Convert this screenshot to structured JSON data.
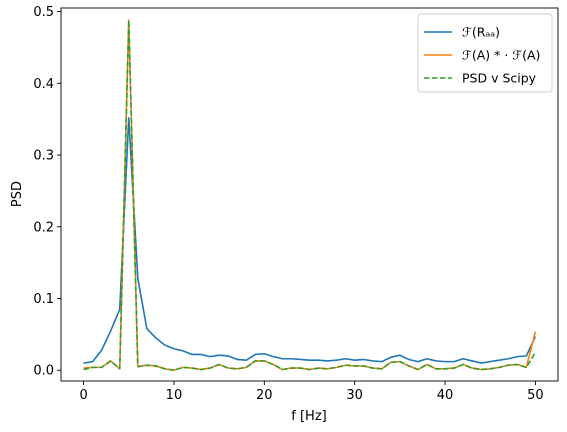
{
  "chart_data": {
    "type": "line",
    "title": "",
    "xlabel": "f [Hz]",
    "ylabel": "PSD",
    "xlim": [
      -2.5,
      52.5
    ],
    "ylim": [
      -0.015,
      0.505
    ],
    "xticks": [
      0,
      10,
      20,
      30,
      40,
      50
    ],
    "yticks": [
      0.0,
      0.1,
      0.2,
      0.3,
      0.4,
      0.5
    ],
    "xtick_labels": [
      "0",
      "10",
      "20",
      "30",
      "40",
      "50"
    ],
    "ytick_labels": [
      "0.0",
      "0.1",
      "0.2",
      "0.3",
      "0.4",
      "0.5"
    ],
    "grid": false,
    "legend_position": "top-right",
    "series": [
      {
        "name": "ℱ(Rₐₐ)",
        "color": "#1f77b4",
        "dash": "solid",
        "x": [
          0,
          1,
          2,
          3,
          4,
          5,
          6,
          7,
          8,
          9,
          10,
          11,
          12,
          13,
          14,
          15,
          16,
          17,
          18,
          19,
          20,
          21,
          22,
          23,
          24,
          25,
          26,
          27,
          28,
          29,
          30,
          31,
          32,
          33,
          34,
          35,
          36,
          37,
          38,
          39,
          40,
          41,
          42,
          43,
          44,
          45,
          46,
          47,
          48,
          49,
          50
        ],
        "values": [
          0.01,
          0.012,
          0.028,
          0.055,
          0.085,
          0.352,
          0.128,
          0.058,
          0.045,
          0.035,
          0.03,
          0.027,
          0.022,
          0.022,
          0.019,
          0.021,
          0.02,
          0.015,
          0.014,
          0.022,
          0.023,
          0.019,
          0.016,
          0.016,
          0.015,
          0.014,
          0.014,
          0.013,
          0.014,
          0.016,
          0.014,
          0.015,
          0.013,
          0.012,
          0.018,
          0.021,
          0.015,
          0.012,
          0.016,
          0.013,
          0.012,
          0.012,
          0.016,
          0.013,
          0.01,
          0.012,
          0.014,
          0.016,
          0.019,
          0.02,
          0.047
        ]
      },
      {
        "name": "ℱ(A) * · ℱ(A)",
        "color": "#ff7f0e",
        "dash": "solid",
        "x": [
          0,
          1,
          2,
          3,
          4,
          5,
          6,
          7,
          8,
          9,
          10,
          11,
          12,
          13,
          14,
          15,
          16,
          17,
          18,
          19,
          20,
          21,
          22,
          23,
          24,
          25,
          26,
          27,
          28,
          29,
          30,
          31,
          32,
          33,
          34,
          35,
          36,
          37,
          38,
          39,
          40,
          41,
          42,
          43,
          44,
          45,
          46,
          47,
          48,
          49,
          50
        ],
        "values": [
          0.003,
          0.004,
          0.004,
          0.013,
          0.002,
          0.488,
          0.005,
          0.007,
          0.006,
          0.002,
          0.0,
          0.004,
          0.003,
          0.001,
          0.003,
          0.008,
          0.003,
          0.002,
          0.004,
          0.013,
          0.013,
          0.008,
          0.001,
          0.003,
          0.003,
          0.001,
          0.003,
          0.002,
          0.004,
          0.007,
          0.006,
          0.006,
          0.003,
          0.002,
          0.011,
          0.012,
          0.006,
          0.001,
          0.008,
          0.002,
          0.002,
          0.003,
          0.008,
          0.003,
          0.001,
          0.002,
          0.004,
          0.007,
          0.008,
          0.004,
          0.054
        ]
      },
      {
        "name": "PSD v Scipy",
        "color": "#2ca02c",
        "dash": "dashed",
        "x": [
          0,
          1,
          2,
          3,
          4,
          5,
          6,
          7,
          8,
          9,
          10,
          11,
          12,
          13,
          14,
          15,
          16,
          17,
          18,
          19,
          20,
          21,
          22,
          23,
          24,
          25,
          26,
          27,
          28,
          29,
          30,
          31,
          32,
          33,
          34,
          35,
          36,
          37,
          38,
          39,
          40,
          41,
          42,
          43,
          44,
          45,
          46,
          47,
          48,
          49,
          50
        ],
        "values": [
          0.001,
          0.004,
          0.004,
          0.013,
          0.002,
          0.488,
          0.005,
          0.007,
          0.006,
          0.002,
          0.0,
          0.004,
          0.003,
          0.001,
          0.003,
          0.008,
          0.003,
          0.002,
          0.004,
          0.013,
          0.013,
          0.008,
          0.001,
          0.003,
          0.003,
          0.001,
          0.003,
          0.002,
          0.004,
          0.007,
          0.006,
          0.006,
          0.003,
          0.002,
          0.011,
          0.012,
          0.006,
          0.001,
          0.008,
          0.002,
          0.002,
          0.003,
          0.008,
          0.003,
          0.001,
          0.002,
          0.004,
          0.007,
          0.008,
          0.004,
          0.025
        ]
      }
    ]
  }
}
